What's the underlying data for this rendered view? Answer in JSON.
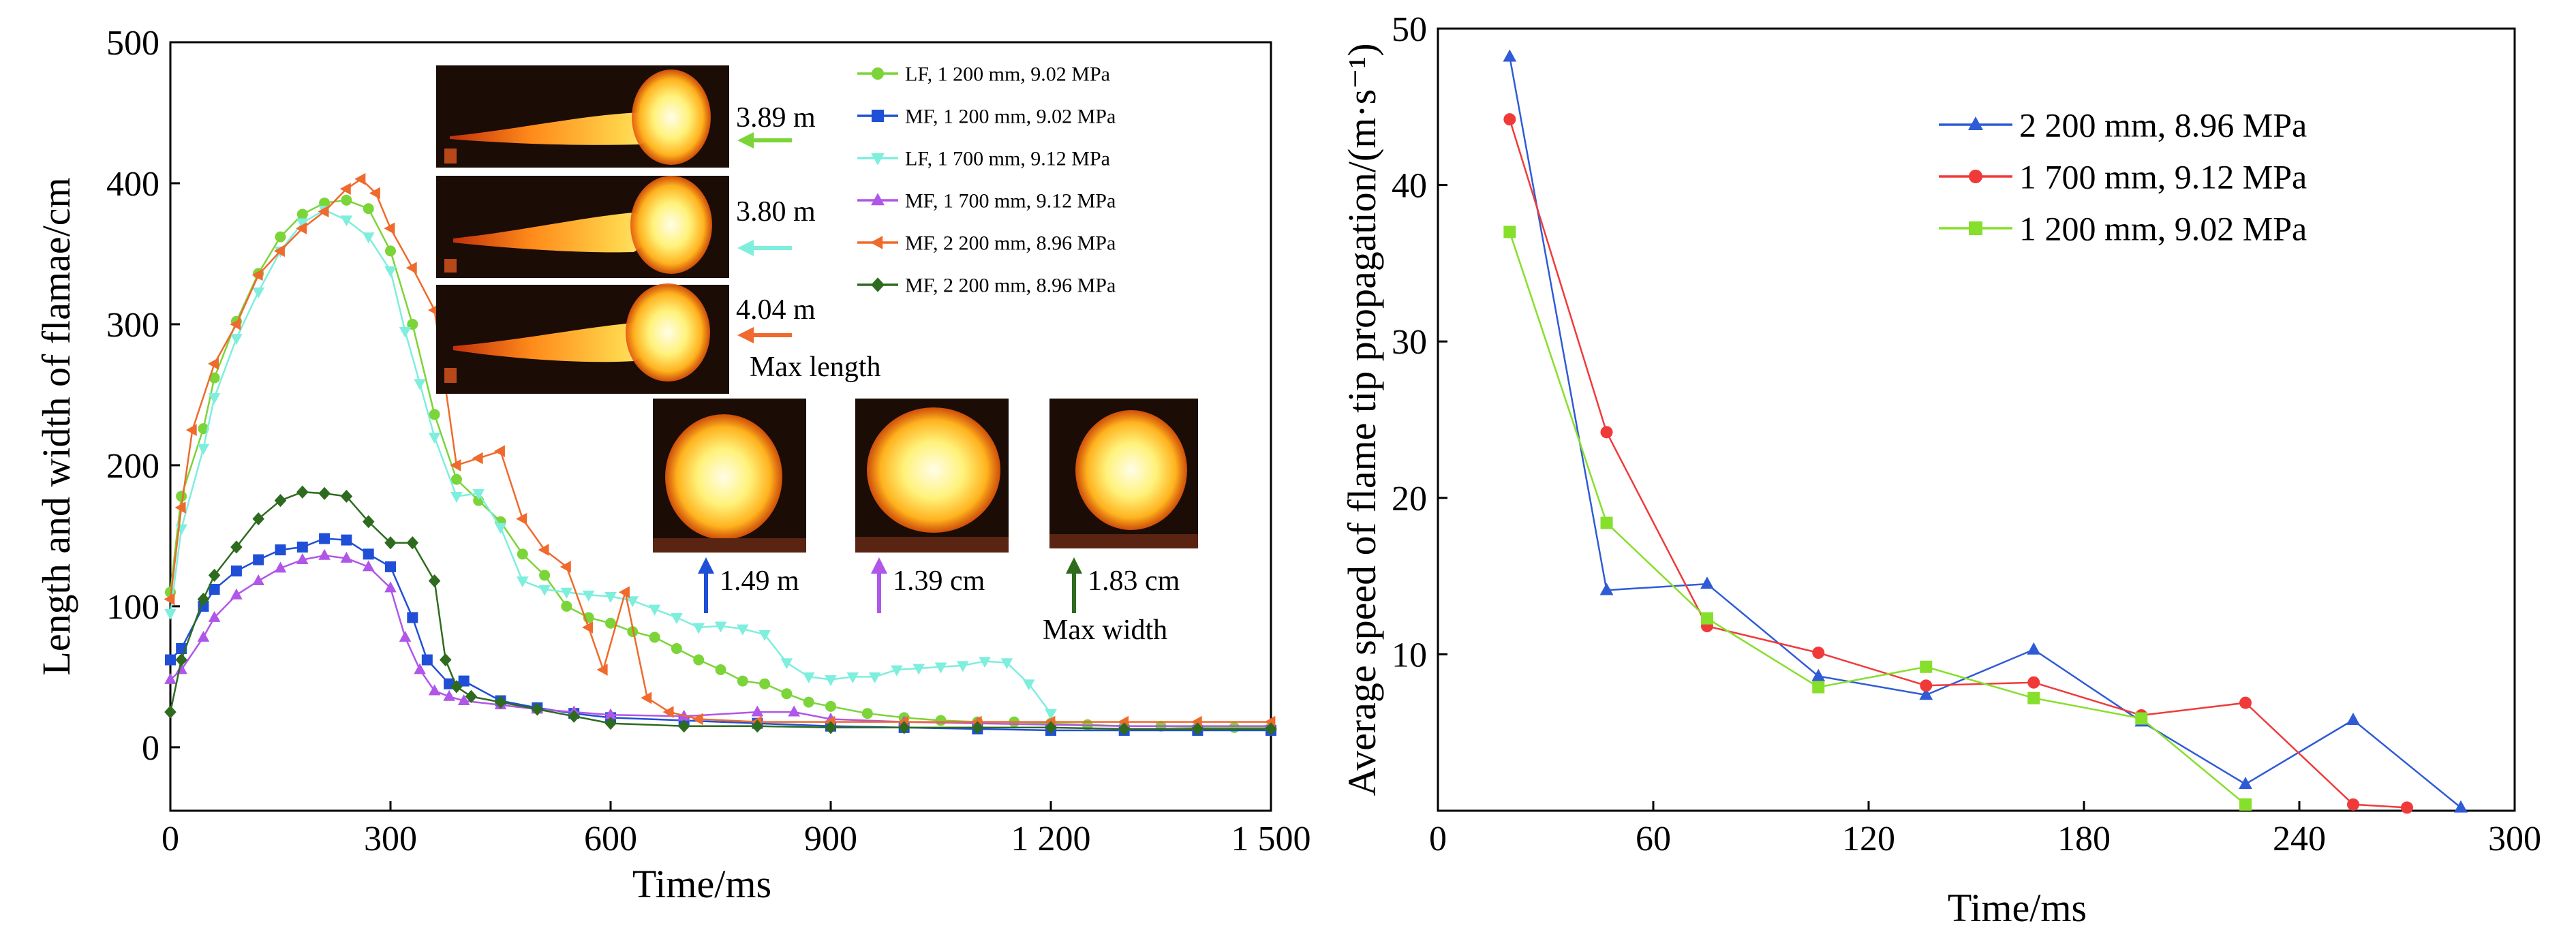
{
  "chart_data": [
    {
      "type": "line",
      "xlabel": "Time/ms",
      "ylabel": "Length and width of flamae/cm",
      "xlim": [
        0,
        1500
      ],
      "ylim": [
        -45,
        500
      ],
      "xticks": [
        0,
        300,
        600,
        900,
        1200,
        1500
      ],
      "xtick_labels": [
        "0",
        "300",
        "600",
        "900",
        "1 200",
        "1 500"
      ],
      "yticks": [
        0,
        100,
        200,
        300,
        400,
        500
      ],
      "ytick_labels": [
        "0",
        "100",
        "200",
        "300",
        "400",
        "500"
      ],
      "grid": false,
      "legend_position": "top-right",
      "series": [
        {
          "name": "LF, 1 200 mm, 9.02 MPa",
          "color": "#7bd438",
          "marker": "circle",
          "x": [
            0,
            15,
            45,
            60,
            90,
            120,
            150,
            180,
            210,
            240,
            270,
            300,
            330,
            360,
            390,
            420,
            450,
            480,
            510,
            540,
            570,
            600,
            630,
            660,
            690,
            720,
            750,
            780,
            810,
            840,
            870,
            900,
            950,
            1000,
            1050,
            1100,
            1150,
            1200,
            1250,
            1300,
            1350,
            1400,
            1450,
            1500
          ],
          "y": [
            110,
            178,
            226,
            262,
            302,
            336,
            362,
            378,
            386,
            388,
            382,
            352,
            300,
            236,
            190,
            175,
            160,
            137,
            122,
            100,
            92,
            88,
            82,
            78,
            70,
            62,
            55,
            47,
            45,
            38,
            32,
            29,
            24,
            21,
            19,
            18,
            18,
            17,
            16,
            15,
            15,
            14,
            14,
            14
          ]
        },
        {
          "name": "MF, 1 200 mm, 9.02 MPa",
          "color": "#1f4fd6",
          "marker": "square",
          "x": [
            0,
            15,
            45,
            60,
            90,
            120,
            150,
            180,
            210,
            240,
            270,
            300,
            330,
            350,
            380,
            400,
            450,
            500,
            550,
            600,
            700,
            800,
            900,
            1000,
            1100,
            1200,
            1300,
            1400,
            1500
          ],
          "y": [
            62,
            70,
            100,
            112,
            125,
            133,
            140,
            142,
            148,
            147,
            137,
            128,
            92,
            62,
            45,
            47,
            33,
            28,
            24,
            21,
            19,
            17,
            15,
            14,
            13,
            12,
            12,
            12,
            12
          ]
        },
        {
          "name": "LF, 1 700 mm, 9.12 MPa",
          "color": "#7eeedd",
          "marker": "triangle-down",
          "x": [
            0,
            15,
            45,
            60,
            90,
            120,
            150,
            180,
            210,
            240,
            270,
            300,
            320,
            340,
            360,
            390,
            420,
            450,
            480,
            510,
            540,
            570,
            600,
            630,
            660,
            690,
            720,
            750,
            780,
            810,
            840,
            870,
            900,
            930,
            960,
            990,
            1020,
            1050,
            1080,
            1110,
            1140,
            1170,
            1200
          ],
          "y": [
            95,
            155,
            212,
            248,
            290,
            323,
            352,
            372,
            381,
            374,
            362,
            338,
            295,
            258,
            220,
            178,
            180,
            156,
            118,
            112,
            110,
            108,
            107,
            104,
            98,
            92,
            85,
            86,
            84,
            80,
            60,
            50,
            48,
            50,
            50,
            55,
            56,
            57,
            58,
            61,
            60,
            45,
            24
          ]
        },
        {
          "name": "MF, 1 700 mm, 9.12 MPa",
          "color": "#b056e8",
          "marker": "triangle-up",
          "x": [
            0,
            15,
            45,
            60,
            90,
            120,
            150,
            180,
            210,
            240,
            270,
            300,
            320,
            340,
            360,
            380,
            400,
            450,
            500,
            550,
            600,
            700,
            800,
            850,
            900,
            1000,
            1100,
            1200,
            1300,
            1400,
            1500
          ],
          "y": [
            48,
            55,
            78,
            92,
            108,
            118,
            127,
            133,
            136,
            134,
            128,
            113,
            78,
            55,
            40,
            36,
            33,
            30,
            27,
            25,
            23,
            22,
            25,
            25,
            20,
            18,
            17,
            16,
            15,
            15,
            15
          ]
        },
        {
          "name": "MF, 2 200 mm, 8.96 MPa",
          "color": "#ef6a2c",
          "marker": "triangle-left",
          "x": [
            0,
            15,
            30,
            60,
            90,
            120,
            150,
            180,
            210,
            240,
            260,
            280,
            300,
            330,
            360,
            390,
            420,
            450,
            480,
            510,
            540,
            570,
            590,
            620,
            650,
            680,
            720,
            800,
            900,
            1000,
            1100,
            1200,
            1300,
            1400,
            1500
          ],
          "y": [
            105,
            170,
            225,
            272,
            300,
            335,
            352,
            368,
            380,
            396,
            403,
            393,
            368,
            340,
            310,
            200,
            205,
            210,
            162,
            140,
            128,
            85,
            55,
            110,
            35,
            25,
            20,
            18,
            18,
            18,
            18,
            18,
            18,
            18,
            18
          ]
        },
        {
          "name": "MF, 2 200 mm, 8.96 MPa",
          "color": "#2e6b1f",
          "marker": "diamond",
          "x": [
            0,
            15,
            45,
            60,
            90,
            120,
            150,
            180,
            210,
            240,
            270,
            300,
            330,
            360,
            375,
            390,
            410,
            450,
            500,
            550,
            600,
            700,
            800,
            900,
            1000,
            1100,
            1200,
            1300,
            1400,
            1500
          ],
          "y": [
            25,
            62,
            105,
            122,
            142,
            162,
            175,
            181,
            180,
            178,
            160,
            145,
            145,
            118,
            62,
            43,
            36,
            32,
            27,
            22,
            17,
            15,
            15,
            14,
            14,
            14,
            14,
            13,
            13,
            13
          ]
        }
      ],
      "annotations": {
        "length_values": [
          "3.89 m",
          "3.80 m",
          "4.04 m"
        ],
        "length_caption": "Max length",
        "width_values": [
          "1.49 m",
          "1.39 cm",
          "1.83 cm"
        ],
        "width_caption": "Max width"
      }
    },
    {
      "type": "line",
      "xlabel": "Time/ms",
      "ylabel": "Average speed of flame tip propagation/(m·s⁻¹)",
      "xlim": [
        0,
        300
      ],
      "ylim": [
        0,
        50
      ],
      "xticks": [
        0,
        60,
        120,
        180,
        240,
        300
      ],
      "yticks": [
        10,
        20,
        30,
        40,
        50
      ],
      "grid": false,
      "legend_position": "top-right",
      "series": [
        {
          "name": "2 200 mm, 8.96 MPa",
          "color": "#2f5bd6",
          "marker": "triangle-up",
          "x": [
            20,
            47,
            75,
            106,
            136,
            166,
            196,
            225,
            255,
            285
          ],
          "y": [
            48.2,
            14.1,
            14.5,
            8.6,
            7.4,
            10.3,
            5.7,
            1.7,
            5.8,
            0.2
          ]
        },
        {
          "name": "1 700 mm, 9.12 MPa",
          "color": "#f03a3a",
          "marker": "circle",
          "x": [
            20,
            47,
            75,
            106,
            136,
            166,
            196,
            225,
            255,
            270
          ],
          "y": [
            44.2,
            24.2,
            11.8,
            10.1,
            8.0,
            8.2,
            6.1,
            6.9,
            0.4,
            0.2
          ]
        },
        {
          "name": "1 200 mm, 9.02 MPa",
          "color": "#86df2a",
          "marker": "square",
          "x": [
            20,
            47,
            75,
            106,
            136,
            166,
            196,
            225
          ],
          "y": [
            37.0,
            18.4,
            12.3,
            7.9,
            9.2,
            7.2,
            5.9,
            0.4
          ]
        }
      ]
    }
  ]
}
